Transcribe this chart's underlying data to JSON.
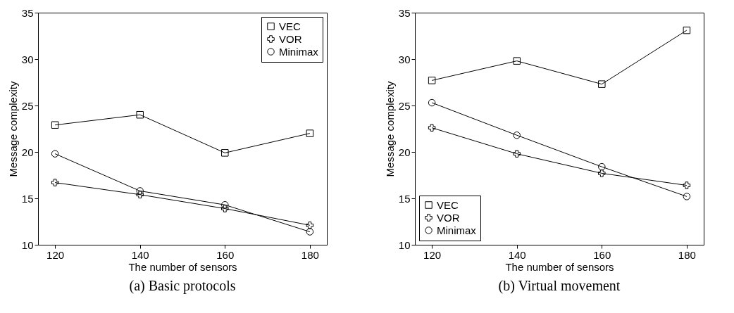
{
  "chart_data": [
    {
      "type": "line",
      "title": "(a) Basic protocols",
      "xlabel": "The number of sensors",
      "ylabel": "Message complexity",
      "x": [
        120,
        140,
        160,
        180
      ],
      "xlim": [
        116,
        184
      ],
      "xticks": [
        120,
        140,
        160,
        180
      ],
      "ylim": [
        10,
        35
      ],
      "yticks": [
        10,
        15,
        20,
        25,
        30,
        35
      ],
      "legend": "top right",
      "grid": false,
      "series": [
        {
          "name": "VEC",
          "color": "#000000",
          "marker": "square",
          "values": [
            22.9,
            24.0,
            19.9,
            22.0
          ]
        },
        {
          "name": "VOR",
          "color": "#000000",
          "marker": "cross",
          "values": [
            16.7,
            15.4,
            13.9,
            12.1
          ]
        },
        {
          "name": "Minimax",
          "color": "#000000",
          "marker": "circle",
          "values": [
            19.8,
            15.8,
            14.3,
            11.4
          ]
        }
      ]
    },
    {
      "type": "line",
      "title": "(b) Virtual movement",
      "xlabel": "The number of sensors",
      "ylabel": "Message complexity",
      "x": [
        120,
        140,
        160,
        180
      ],
      "xlim": [
        116,
        184
      ],
      "xticks": [
        120,
        140,
        160,
        180
      ],
      "ylim": [
        10,
        35
      ],
      "yticks": [
        10,
        15,
        20,
        25,
        30,
        35
      ],
      "legend": "bottom left",
      "grid": false,
      "series": [
        {
          "name": "VEC",
          "color": "#000000",
          "marker": "square",
          "values": [
            27.7,
            29.8,
            27.3,
            33.1
          ]
        },
        {
          "name": "VOR",
          "color": "#000000",
          "marker": "cross",
          "values": [
            22.6,
            19.8,
            17.7,
            16.4
          ]
        },
        {
          "name": "Minimax",
          "color": "#000000",
          "marker": "circle",
          "values": [
            25.3,
            21.8,
            18.4,
            15.2
          ]
        }
      ]
    }
  ]
}
